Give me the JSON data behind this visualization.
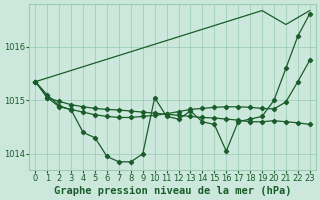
{
  "background_color": "#cce8dc",
  "grid_color": "#99ccb3",
  "line_color": "#1a5c2a",
  "xlabel": "Graphe pression niveau de la mer (hPa)",
  "xlabel_fontsize": 7.5,
  "ylim": [
    1013.7,
    1016.8
  ],
  "yticks": [
    1014,
    1015,
    1016
  ],
  "xlim": [
    -0.5,
    23.5
  ],
  "xticks": [
    0,
    1,
    2,
    3,
    4,
    5,
    6,
    7,
    8,
    9,
    10,
    11,
    12,
    13,
    14,
    15,
    16,
    17,
    18,
    19,
    20,
    21,
    22,
    23
  ],
  "line_straight": [
    1015.35,
    1015.42,
    1015.49,
    1015.56,
    1015.63,
    1015.7,
    1015.77,
    1015.84,
    1015.91,
    1015.98,
    1016.05,
    1016.12,
    1016.19,
    1016.26,
    1016.33,
    1016.4,
    1016.47,
    1016.54,
    1016.61,
    1016.68,
    1016.55,
    1016.42,
    1016.55,
    1016.68
  ],
  "line_wavy": [
    1015.35,
    1015.1,
    1014.9,
    1014.82,
    1014.4,
    1014.3,
    1013.95,
    1013.85,
    1013.85,
    1014.0,
    1015.05,
    1014.7,
    1014.65,
    1014.8,
    1014.6,
    1014.55,
    1014.05,
    1014.6,
    1014.65,
    1014.7,
    1015.0,
    1015.6,
    1016.2,
    1016.62
  ],
  "line_smooth": [
    1015.35,
    1015.05,
    1014.88,
    1014.83,
    1014.78,
    1014.73,
    1014.7,
    1014.68,
    1014.68,
    1014.7,
    1014.72,
    1014.75,
    1014.79,
    1014.83,
    1014.85,
    1014.87,
    1014.88,
    1014.88,
    1014.87,
    1014.85,
    1014.84,
    1014.97,
    1015.35,
    1015.75
  ],
  "line_flat": [
    1015.35,
    1015.05,
    1014.98,
    1014.92,
    1014.88,
    1014.85,
    1014.83,
    1014.82,
    1014.8,
    1014.78,
    1014.76,
    1014.74,
    1014.72,
    1014.7,
    1014.68,
    1014.67,
    1014.65,
    1014.63,
    1014.6,
    1014.6,
    1014.62,
    1014.6,
    1014.58,
    1014.55
  ],
  "tick_fontsize": 6,
  "linewidth": 0.9,
  "marker": "D",
  "markersize": 2.2
}
